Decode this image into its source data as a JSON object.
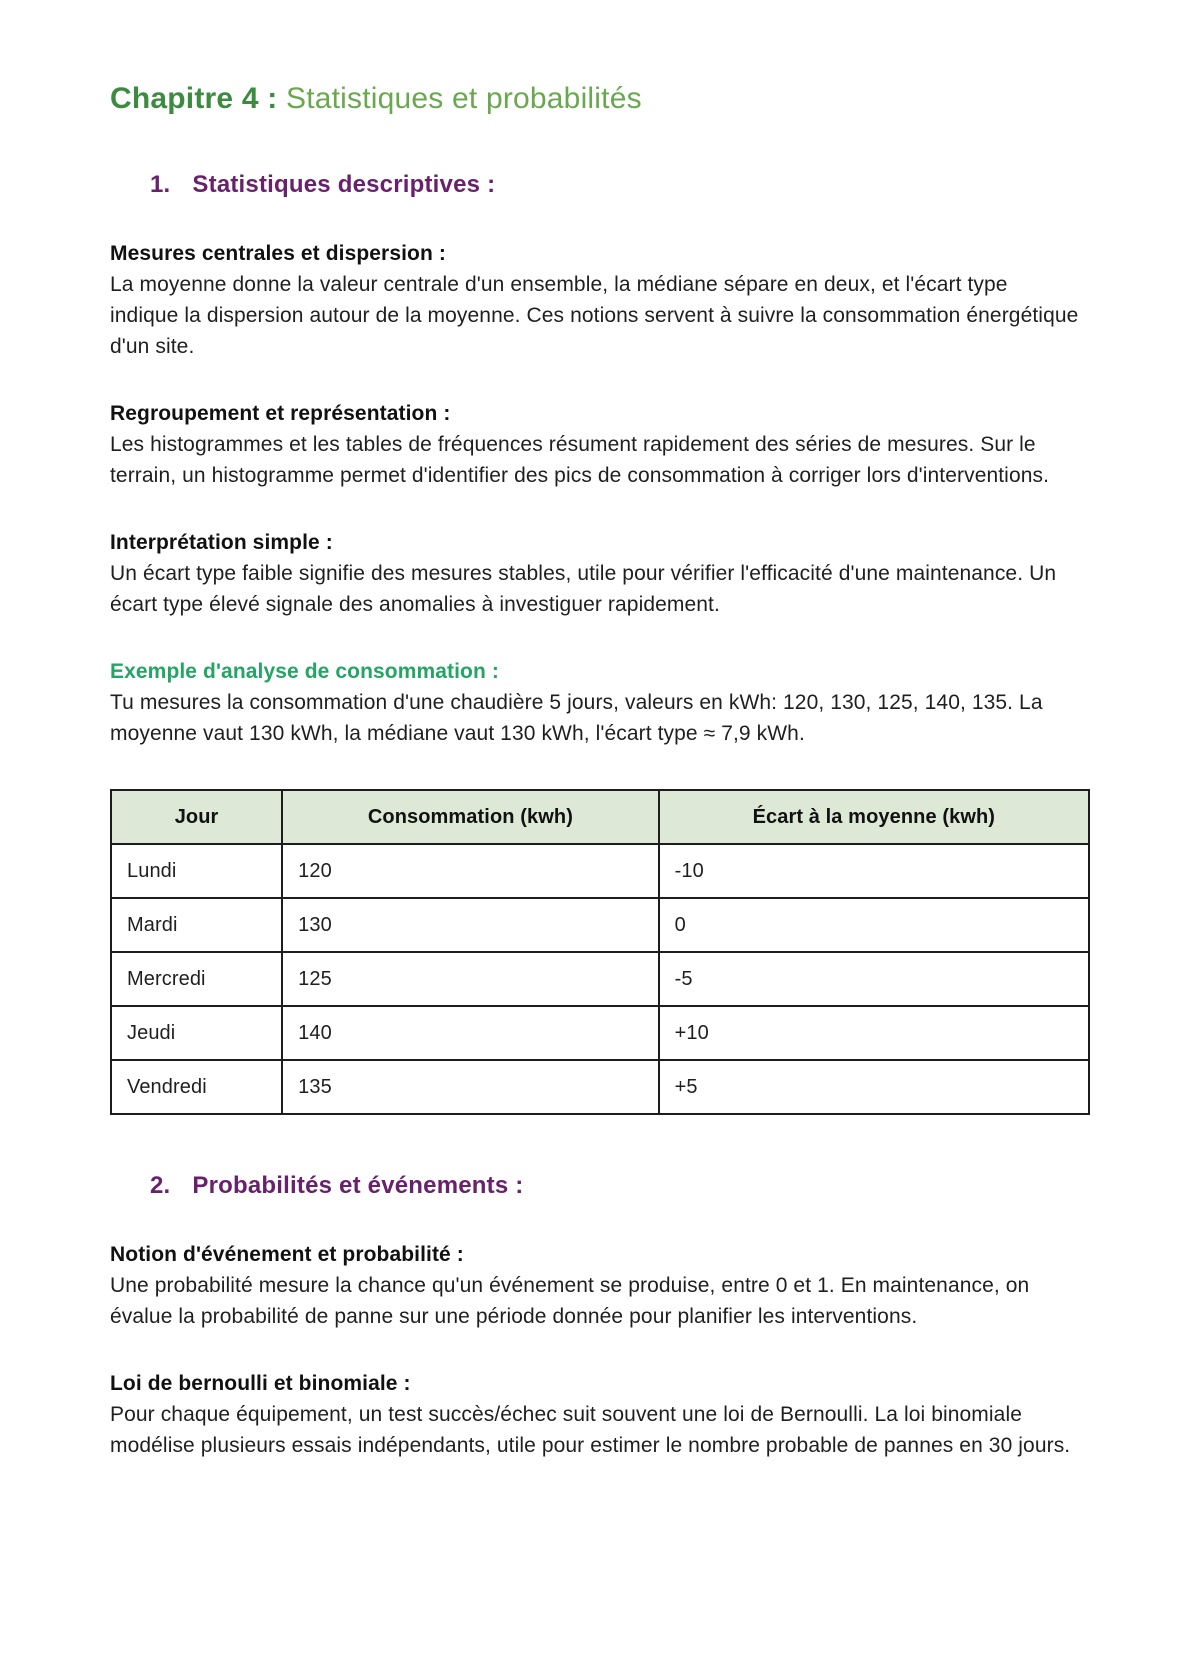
{
  "title": {
    "chapter": "Chapitre 4 :",
    "subject": "Statistiques et probabilités"
  },
  "section_1": {
    "number": "1.",
    "title": "Statistiques descriptives :"
  },
  "section_2": {
    "number": "2.",
    "title": "Probabilités et événements :"
  },
  "blocks": {
    "mesures": {
      "heading": "Mesures centrales et dispersion :",
      "body": "La moyenne donne la valeur centrale d'un ensemble, la médiane sépare en deux, et l'écart type indique la dispersion autour de la moyenne. Ces notions servent à suivre la consommation énergétique d'un site."
    },
    "regroupement": {
      "heading": "Regroupement et représentation :",
      "body": "Les histogrammes et les tables de fréquences résument rapidement des séries de mesures. Sur le terrain, un histogramme permet d'identifier des pics de consommation à corriger lors d'interventions."
    },
    "interpretation": {
      "heading": "Interprétation simple :",
      "body": "Un écart type faible signifie des mesures stables, utile pour vérifier l'efficacité d'une maintenance. Un écart type élevé signale des anomalies à investiguer rapidement."
    },
    "exemple": {
      "heading": "Exemple d'analyse de consommation :",
      "body": "Tu mesures la consommation d'une chaudière 5 jours, valeurs en kWh: 120, 130, 125, 140, 135. La moyenne vaut 130 kWh, la médiane vaut 130 kWh, l'écart type ≈ 7,9 kWh."
    },
    "notion": {
      "heading": "Notion d'événement et probabilité :",
      "body": "Une probabilité mesure la chance qu'un événement se produise, entre 0 et 1. En maintenance, on évalue la probabilité de panne sur une période donnée pour planifier les interventions."
    },
    "bernoulli": {
      "heading": "Loi de bernoulli et binomiale :",
      "body": "Pour chaque équipement, un test succès/échec suit souvent une loi de Bernoulli. La loi binomiale modélise plusieurs essais indépendants, utile pour estimer le nombre probable de pannes en 30 jours."
    }
  },
  "table": {
    "headers": [
      "Jour",
      "Consommation (kwh)",
      "Écart à la moyenne (kwh)"
    ],
    "rows": [
      [
        "Lundi",
        "120",
        "-10"
      ],
      [
        "Mardi",
        "130",
        "0"
      ],
      [
        "Mercredi",
        "125",
        "-5"
      ],
      [
        "Jeudi",
        "140",
        "+10"
      ],
      [
        "Vendredi",
        "135",
        "+5"
      ]
    ]
  },
  "colors": {
    "chapter_green": "#3d8b40",
    "subject_green": "#6aa84f",
    "section_purple": "#69216d",
    "example_green": "#23a564",
    "table_header_bg": "#dde9d6",
    "table_border": "#1d1d1d",
    "body_text": "#1f1f1f"
  }
}
